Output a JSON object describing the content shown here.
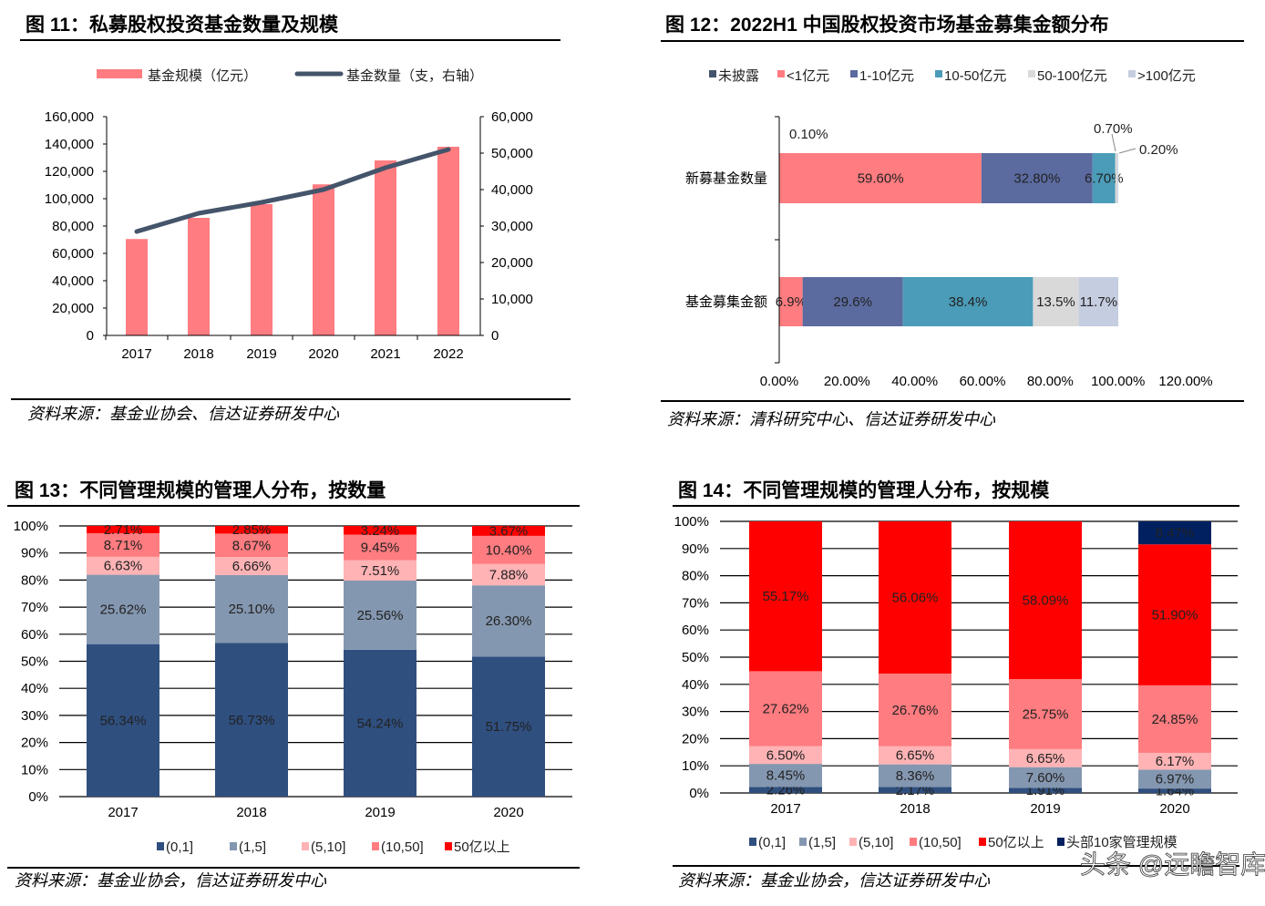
{
  "charts": {
    "c11": {
      "title": "图 11：私募股权投资基金数量及规模",
      "source": "资料来源：基金业协会、信达证券研发中心"
    },
    "c12": {
      "title": "图 12：2022H1 中国股权投资市场基金募集金额分布",
      "source": "资料来源：清科研究中心、信达证券研发中心"
    },
    "c13": {
      "title": "图 13：不同管理规模的管理人分布，按数量",
      "source": "资料来源：基金业协会，信达证券研发中心"
    },
    "c14": {
      "title": "图 14：不同管理规模的管理人分布，按规模",
      "source": "资料来源：基金业协会，信达证券研发中心"
    }
  },
  "watermark": "头条 @远瞻智库",
  "chart_data": [
    {
      "type": "bar+line",
      "categories": [
        "2017",
        "2018",
        "2019",
        "2020",
        "2021",
        "2022"
      ],
      "series": [
        {
          "name": "基金规模（亿元）",
          "type": "bar",
          "axis": "left",
          "color": "#FF7C80",
          "values": [
            70500,
            86000,
            96000,
            110500,
            128000,
            138000
          ]
        },
        {
          "name": "基金数量（支，右轴）",
          "type": "line",
          "axis": "right",
          "color": "#44546A",
          "values": [
            28500,
            33500,
            36500,
            40000,
            46000,
            51000
          ]
        }
      ],
      "ylim": [
        0,
        160000
      ],
      "y_ticks": [
        "0",
        "20,000",
        "40,000",
        "60,000",
        "80,000",
        "100,000",
        "120,000",
        "140,000",
        "160,000"
      ],
      "y2lim": [
        0,
        60000
      ],
      "y2_ticks": [
        "0",
        "10,000",
        "20,000",
        "30,000",
        "40,000",
        "50,000",
        "60,000"
      ],
      "legend": "top"
    },
    {
      "type": "stacked-bar-horizontal",
      "categories": [
        "新募基金数量",
        "基金募集金额"
      ],
      "series": [
        {
          "name": "未披露",
          "color": "#44546A",
          "values": [
            0.1,
            0
          ],
          "labels": [
            "0.10%",
            ""
          ]
        },
        {
          "name": "<1亿元",
          "color": "#FF7C80",
          "values": [
            59.6,
            6.9
          ],
          "labels": [
            "59.60%",
            "6.9%"
          ]
        },
        {
          "name": "1-10亿元",
          "color": "#5B6BA0",
          "values": [
            32.8,
            29.6
          ],
          "labels": [
            "32.80%",
            "29.6%"
          ]
        },
        {
          "name": "10-50亿元",
          "color": "#4A9CB8",
          "values": [
            6.7,
            38.4
          ],
          "labels": [
            "6.70%",
            "38.4%"
          ]
        },
        {
          "name": "50-100亿元",
          "color": "#D9D9D9",
          "values": [
            0.7,
            13.5
          ],
          "labels": [
            "0.70%",
            "13.5%"
          ]
        },
        {
          "name": ">100亿元",
          "color": "#C5CDE0",
          "values": [
            0.2,
            11.7
          ],
          "labels": [
            "0.20%",
            "11.7%"
          ]
        }
      ],
      "xlim": [
        0,
        120
      ],
      "x_ticks": [
        "0.00%",
        "20.00%",
        "40.00%",
        "60.00%",
        "80.00%",
        "100.00%",
        "120.00%"
      ],
      "legend": "top"
    },
    {
      "type": "stacked-bar",
      "categories": [
        "2017",
        "2018",
        "2019",
        "2020"
      ],
      "series": [
        {
          "name": "(0,1]",
          "color": "#2F4F7F",
          "values": [
            56.34,
            56.73,
            54.24,
            51.75
          ]
        },
        {
          "name": "(1,5]",
          "color": "#8497B0",
          "values": [
            25.62,
            25.1,
            25.56,
            26.3
          ]
        },
        {
          "name": "(5,10]",
          "color": "#FFB3B5",
          "values": [
            6.63,
            6.66,
            7.51,
            7.88
          ]
        },
        {
          "name": "(10,50]",
          "color": "#FF7C80",
          "values": [
            8.71,
            8.67,
            9.45,
            10.4
          ]
        },
        {
          "name": "50亿以上",
          "color": "#FF0000",
          "values": [
            2.71,
            2.85,
            3.24,
            3.67
          ]
        }
      ],
      "ylim": [
        0,
        100
      ],
      "y_ticks": [
        "0%",
        "10%",
        "20%",
        "30%",
        "40%",
        "50%",
        "60%",
        "70%",
        "80%",
        "90%",
        "100%"
      ],
      "legend": "bottom"
    },
    {
      "type": "stacked-bar",
      "categories": [
        "2017",
        "2018",
        "2019",
        "2020"
      ],
      "series": [
        {
          "name": "(0,1]",
          "color": "#2F4F7F",
          "values": [
            2.26,
            2.17,
            1.91,
            1.64
          ]
        },
        {
          "name": "(1,5]",
          "color": "#8497B0",
          "values": [
            8.45,
            8.36,
            7.6,
            6.97
          ]
        },
        {
          "name": "(5,10]",
          "color": "#FFB3B5",
          "values": [
            6.5,
            6.65,
            6.65,
            6.17
          ]
        },
        {
          "name": "(10,50]",
          "color": "#FF7C80",
          "values": [
            27.62,
            26.76,
            25.75,
            24.85
          ]
        },
        {
          "name": "50亿以上",
          "color": "#FF0000",
          "values": [
            55.17,
            56.06,
            58.09,
            51.9
          ]
        },
        {
          "name": "头部10家管理规模",
          "color": "#002060",
          "values": [
            0,
            0,
            0,
            8.47
          ]
        }
      ],
      "ylim": [
        0,
        100
      ],
      "y_ticks": [
        "0%",
        "10%",
        "20%",
        "30%",
        "40%",
        "50%",
        "60%",
        "70%",
        "80%",
        "90%",
        "100%"
      ],
      "legend": "bottom"
    }
  ]
}
